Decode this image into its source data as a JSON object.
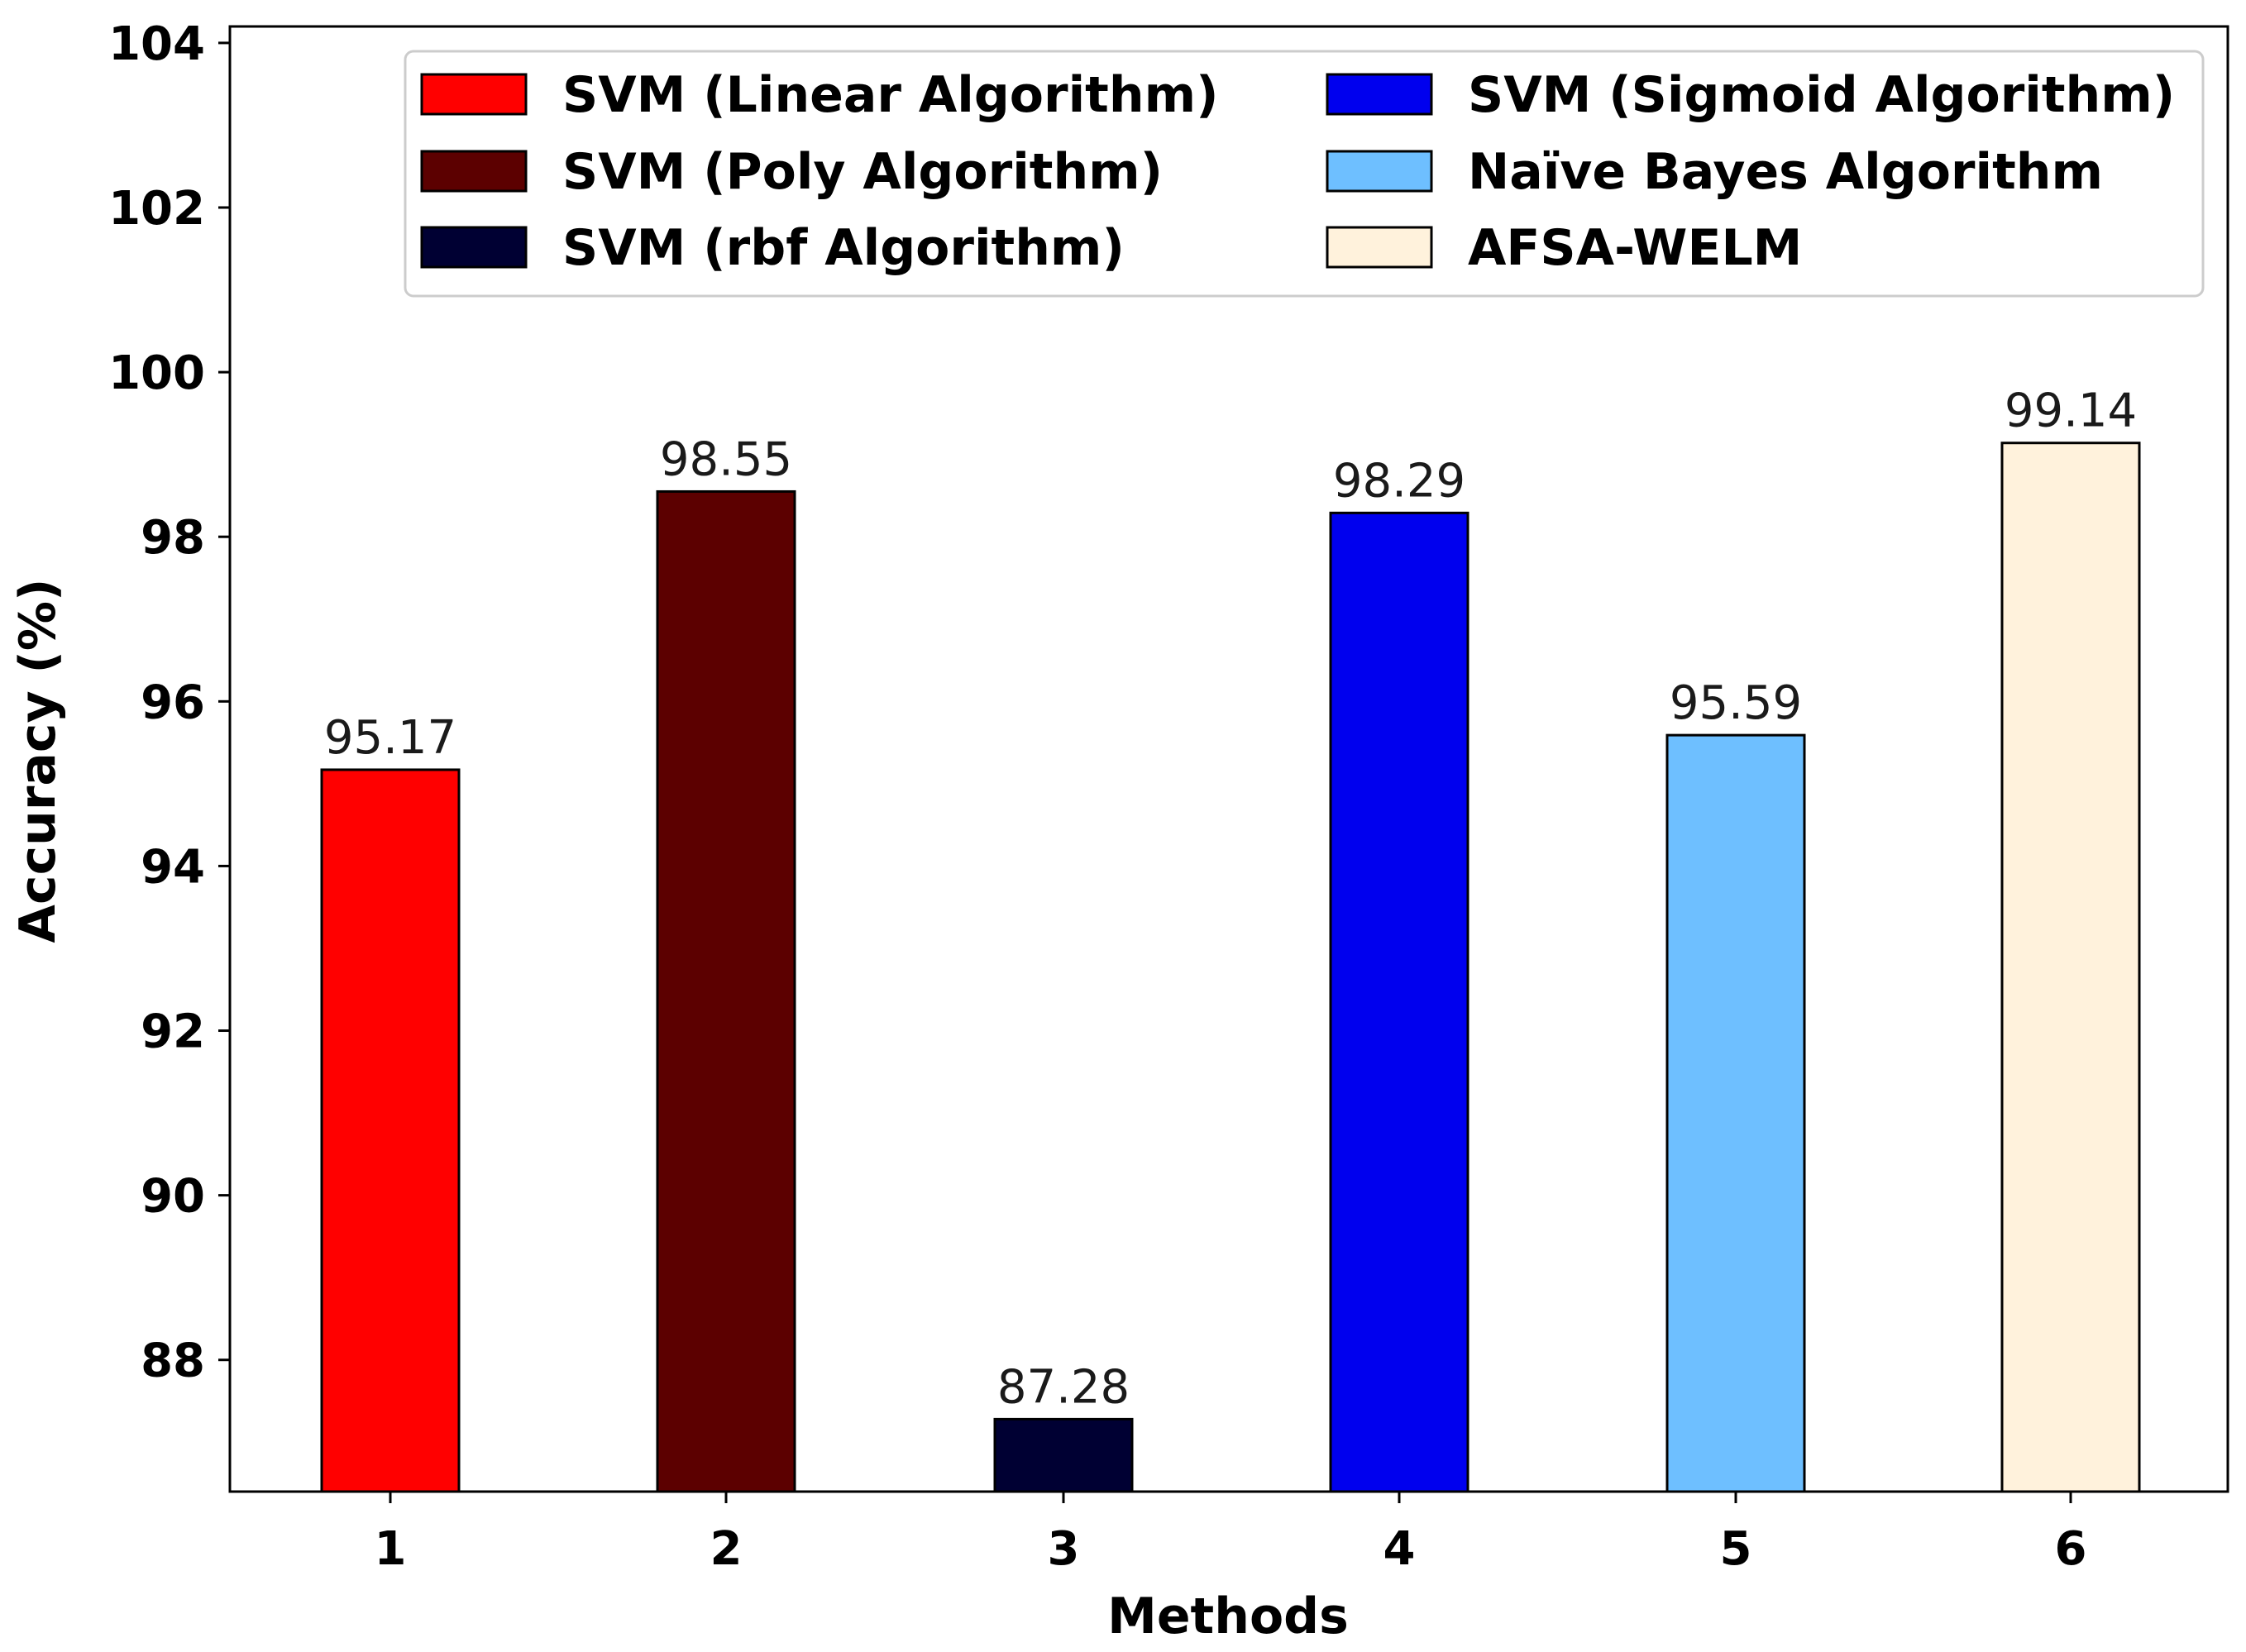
{
  "chart_data": {
    "type": "bar",
    "title": "",
    "xlabel": "Methods",
    "ylabel": "Accuracy (%)",
    "ylim": [
      86.4,
      104.2
    ],
    "yticks": [
      88,
      90,
      92,
      94,
      96,
      98,
      100,
      102,
      104
    ],
    "grid": false,
    "legend_position": "top-right",
    "legend_columns": 2,
    "categories": [
      "1",
      "2",
      "3",
      "4",
      "5",
      "6"
    ],
    "values": [
      95.17,
      98.55,
      87.28,
      98.29,
      95.59,
      99.14
    ],
    "value_labels": [
      "95.17",
      "98.55",
      "87.28",
      "98.29",
      "95.59",
      "99.14"
    ],
    "series": [
      {
        "name": "SVM (Linear Algorithm)",
        "category": "1",
        "value": 95.17,
        "color": "#ff0000"
      },
      {
        "name": "SVM (Poly Algorithm)",
        "category": "2",
        "value": 98.55,
        "color": "#5c0000"
      },
      {
        "name": "SVM (rbf Algorithm)",
        "category": "3",
        "value": 87.28,
        "color": "#000033"
      },
      {
        "name": "SVM (Sigmoid Algorithm)",
        "category": "4",
        "value": 98.29,
        "color": "#0000ee"
      },
      {
        "name": "Naïve Bayes Algorithm",
        "category": "5",
        "value": 95.59,
        "color": "#6ebfff"
      },
      {
        "name": "AFSA-WELM",
        "category": "6",
        "value": 99.14,
        "color": "#fff2dc"
      }
    ]
  }
}
